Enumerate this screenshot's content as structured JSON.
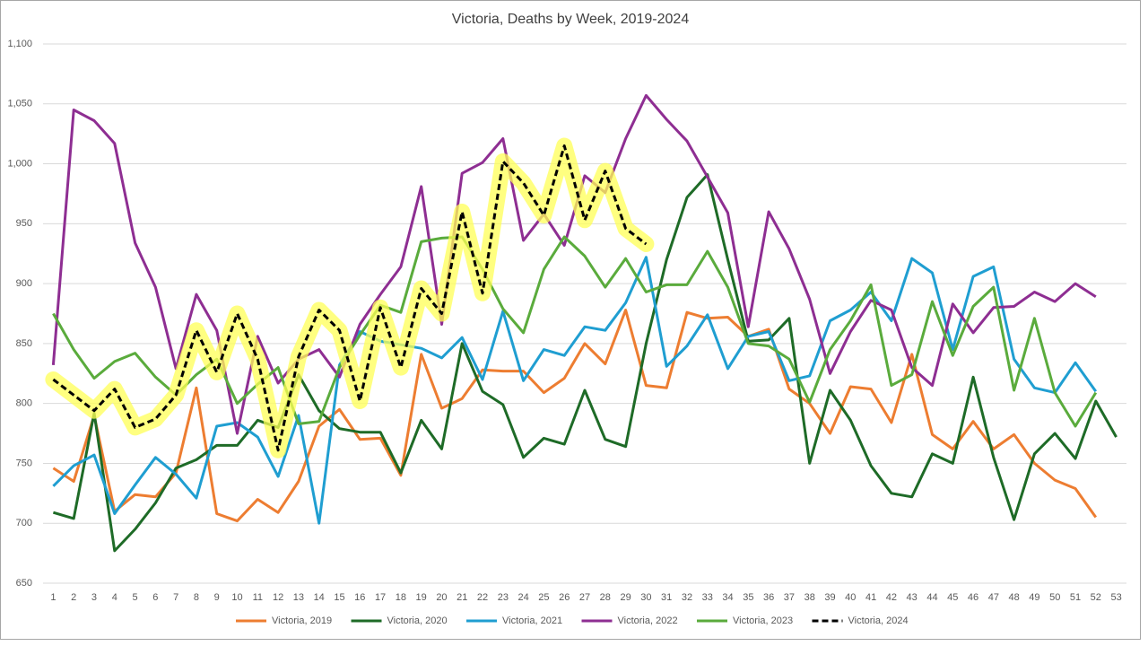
{
  "chart_data": {
    "type": "line",
    "title": "Victoria, Deaths by Week, 2019-2024",
    "categories": [
      1,
      2,
      3,
      4,
      5,
      6,
      7,
      8,
      9,
      10,
      11,
      12,
      13,
      14,
      15,
      16,
      17,
      18,
      19,
      20,
      21,
      22,
      23,
      24,
      25,
      26,
      27,
      28,
      29,
      30,
      31,
      32,
      33,
      34,
      35,
      36,
      37,
      38,
      39,
      40,
      41,
      42,
      43,
      44,
      45,
      46,
      47,
      48,
      49,
      50,
      51,
      52,
      53
    ],
    "ylim": [
      650,
      1100
    ],
    "yticks": [
      650,
      700,
      750,
      800,
      850,
      900,
      950,
      {
        "value": 1000,
        "label": "1,000"
      },
      {
        "value": 1050,
        "label": "1,050"
      },
      {
        "value": 1100,
        "label": "1,100"
      }
    ],
    "grid": true,
    "legend": "bottom",
    "series": [
      {
        "name": "Victoria, 2019",
        "color": "#ed7d31",
        "values": [
          746,
          735,
          790,
          710,
          724,
          722,
          742,
          813,
          708,
          702,
          720,
          709,
          735,
          781,
          795,
          770,
          771,
          740,
          841,
          796,
          804,
          828,
          827,
          827,
          809,
          821,
          850,
          833,
          878,
          815,
          813,
          876,
          871,
          872,
          856,
          862,
          812,
          800,
          775,
          814,
          812,
          784,
          841,
          774,
          762,
          785,
          762,
          774,
          750,
          736,
          729,
          705,
          null
        ]
      },
      {
        "name": "Victoria, 2020",
        "color": "#1e6b27",
        "values": [
          709,
          704,
          792,
          677,
          695,
          717,
          746,
          753,
          765,
          765,
          786,
          780,
          824,
          794,
          779,
          776,
          776,
          742,
          786,
          762,
          850,
          810,
          799,
          755,
          771,
          766,
          811,
          770,
          764,
          850,
          920,
          972,
          991,
          920,
          852,
          853,
          871,
          750,
          811,
          786,
          748,
          725,
          722,
          758,
          750,
          822,
          755,
          703,
          758,
          775,
          754,
          802,
          772
        ]
      },
      {
        "name": "Victoria, 2021",
        "color": "#1f9ed1",
        "values": [
          731,
          748,
          757,
          708,
          732,
          755,
          741,
          721,
          781,
          784,
          772,
          739,
          790,
          700,
          832,
          860,
          852,
          849,
          846,
          838,
          855,
          820,
          877,
          819,
          845,
          840,
          864,
          861,
          884,
          922,
          831,
          848,
          874,
          829,
          856,
          860,
          819,
          823,
          869,
          878,
          893,
          869,
          921,
          909,
          845,
          906,
          914,
          837,
          813,
          809,
          834,
          810,
          null
        ]
      },
      {
        "name": "Victoria, 2022",
        "color": "#8e2e92",
        "values": [
          832,
          1045,
          1036,
          1017,
          934,
          897,
          829,
          891,
          861,
          775,
          856,
          817,
          837,
          845,
          822,
          866,
          891,
          914,
          981,
          866,
          992,
          1001,
          1021,
          936,
          958,
          932,
          990,
          976,
          1021,
          1057,
          1037,
          1019,
          989,
          959,
          864,
          960,
          929,
          887,
          825,
          860,
          886,
          878,
          830,
          815,
          883,
          859,
          880,
          881,
          893,
          885,
          900,
          889,
          null
        ]
      },
      {
        "name": "Victoria, 2023",
        "color": "#5aab3c",
        "values": [
          875,
          845,
          821,
          835,
          842,
          822,
          807,
          824,
          837,
          800,
          816,
          830,
          783,
          785,
          830,
          857,
          882,
          876,
          935,
          938,
          939,
          912,
          879,
          859,
          912,
          939,
          923,
          897,
          921,
          893,
          899,
          899,
          927,
          897,
          850,
          848,
          837,
          801,
          845,
          869,
          899,
          815,
          824,
          885,
          840,
          881,
          897,
          811,
          871,
          809,
          781,
          809,
          null
        ]
      },
      {
        "name": "Victoria, 2024",
        "color": "#000000",
        "dash": true,
        "highlight": "#ffff55",
        "values": [
          820,
          807,
          794,
          812,
          780,
          787,
          807,
          861,
          826,
          875,
          837,
          761,
          839,
          878,
          861,
          802,
          880,
          830,
          896,
          875,
          960,
          892,
          1002,
          984,
          957,
          1015,
          953,
          994,
          946,
          933,
          null,
          null,
          null,
          null,
          null,
          null,
          null,
          null,
          null,
          null,
          null,
          null,
          null,
          null,
          null,
          null,
          null,
          null,
          null,
          null,
          null,
          null,
          null
        ]
      }
    ]
  }
}
